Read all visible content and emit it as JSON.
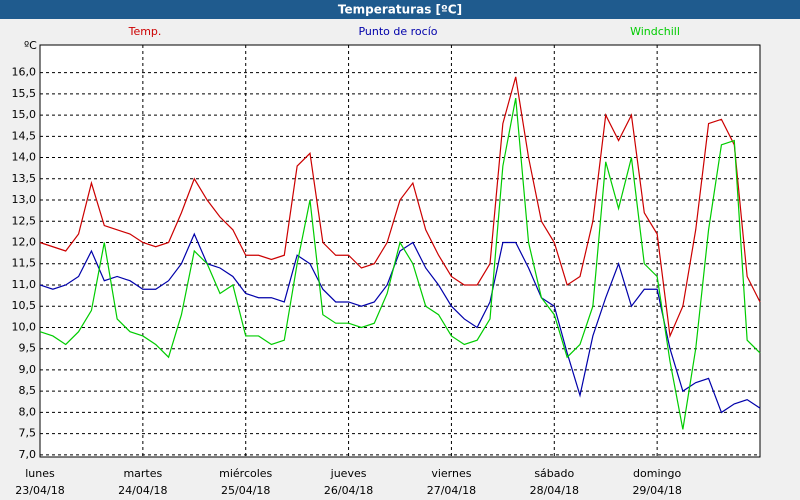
{
  "chart_data": {
    "type": "line",
    "title": "Temperaturas [ºC]",
    "y_unit": "ºC",
    "x": [
      0,
      3,
      6,
      9,
      12,
      15,
      18,
      21,
      24,
      27,
      30,
      33,
      36,
      39,
      42,
      45,
      48,
      51,
      54,
      57,
      60,
      63,
      66,
      69,
      72,
      75,
      78,
      81,
      84,
      87,
      90,
      93,
      96,
      99,
      102,
      105,
      108,
      111,
      114,
      117,
      120,
      123,
      126,
      129,
      132,
      135,
      138,
      141,
      144,
      147,
      150,
      153,
      156,
      159,
      162,
      165,
      168
    ],
    "series": [
      {
        "name": "Temp.",
        "color": "#cc0000",
        "values": [
          12.0,
          11.9,
          11.8,
          12.2,
          13.4,
          12.4,
          12.3,
          12.2,
          12.0,
          11.9,
          12.0,
          12.7,
          13.5,
          13.0,
          12.6,
          12.3,
          11.7,
          11.7,
          11.6,
          11.7,
          13.8,
          14.1,
          12.0,
          11.7,
          11.7,
          11.4,
          11.5,
          12.0,
          13.0,
          13.4,
          12.3,
          11.7,
          11.2,
          11.0,
          11.0,
          11.5,
          14.8,
          15.9,
          14.0,
          12.5,
          12.0,
          11.0,
          11.2,
          12.5,
          15.0,
          14.4,
          15.0,
          12.7,
          12.2,
          9.8,
          10.5,
          12.3,
          14.8,
          14.9,
          14.3,
          11.2,
          10.6
        ]
      },
      {
        "name": "Punto de rocío",
        "color": "#0000aa",
        "values": [
          11.0,
          10.9,
          11.0,
          11.2,
          11.8,
          11.1,
          11.2,
          11.1,
          10.9,
          10.9,
          11.1,
          11.5,
          12.2,
          11.5,
          11.4,
          11.2,
          10.8,
          10.7,
          10.7,
          10.6,
          11.7,
          11.5,
          10.9,
          10.6,
          10.6,
          10.5,
          10.6,
          11.0,
          11.8,
          12.0,
          11.4,
          11.0,
          10.5,
          10.2,
          10.0,
          10.6,
          12.0,
          12.0,
          11.4,
          10.7,
          10.5,
          9.4,
          8.4,
          9.8,
          10.7,
          11.5,
          10.5,
          10.9,
          10.9,
          9.5,
          8.5,
          8.7,
          8.8,
          8.0,
          8.2,
          8.3,
          8.1
        ]
      },
      {
        "name": "Windchill",
        "color": "#00cc00",
        "values": [
          9.9,
          9.8,
          9.6,
          9.9,
          10.4,
          12.0,
          10.2,
          9.9,
          9.8,
          9.6,
          9.3,
          10.3,
          11.8,
          11.5,
          10.8,
          11.0,
          9.8,
          9.8,
          9.6,
          9.7,
          11.5,
          13.0,
          10.3,
          10.1,
          10.1,
          10.0,
          10.1,
          10.8,
          12.0,
          11.5,
          10.5,
          10.3,
          9.8,
          9.6,
          9.7,
          10.2,
          13.8,
          15.4,
          12.0,
          10.7,
          10.3,
          9.3,
          9.6,
          10.5,
          13.9,
          12.8,
          14.0,
          11.5,
          11.2,
          9.2,
          7.6,
          9.5,
          12.3,
          14.3,
          14.4,
          9.7,
          9.4
        ]
      }
    ],
    "xlim": [
      0,
      168
    ],
    "xticks": [
      {
        "value": 0,
        "label": "lunes"
      },
      {
        "value": 24,
        "label": "martes"
      },
      {
        "value": 48,
        "label": "miércoles"
      },
      {
        "value": 72,
        "label": "jueves"
      },
      {
        "value": 96,
        "label": "viernes"
      },
      {
        "value": 120,
        "label": "sábado"
      },
      {
        "value": 144,
        "label": "domingo"
      }
    ],
    "xtick_dates": [
      "23/04/18",
      "24/04/18",
      "25/04/18",
      "26/04/18",
      "27/04/18",
      "28/04/18",
      "29/04/18"
    ],
    "ylim": [
      6.95,
      16.65
    ],
    "yticks": [
      {
        "value": 7,
        "label": "7,0"
      },
      {
        "value": 7.5,
        "label": "7,5"
      },
      {
        "value": 8,
        "label": "8,0"
      },
      {
        "value": 8.5,
        "label": "8,5"
      },
      {
        "value": 9,
        "label": "9,0"
      },
      {
        "value": 9.5,
        "label": "9,5"
      },
      {
        "value": 10,
        "label": "10,0"
      },
      {
        "value": 10.5,
        "label": "10,5"
      },
      {
        "value": 11,
        "label": "11,0"
      },
      {
        "value": 11.5,
        "label": "11,5"
      },
      {
        "value": 12,
        "label": "12,0"
      },
      {
        "value": 12.5,
        "label": "12,5"
      },
      {
        "value": 13,
        "label": "13,0"
      },
      {
        "value": 13.5,
        "label": "13,5"
      },
      {
        "value": 14,
        "label": "14,0"
      },
      {
        "value": 14.5,
        "label": "14,5"
      },
      {
        "value": 15,
        "label": "15,0"
      },
      {
        "value": 15.5,
        "label": "15,5"
      },
      {
        "value": 16,
        "label": "16,0"
      }
    ],
    "grid": true
  }
}
